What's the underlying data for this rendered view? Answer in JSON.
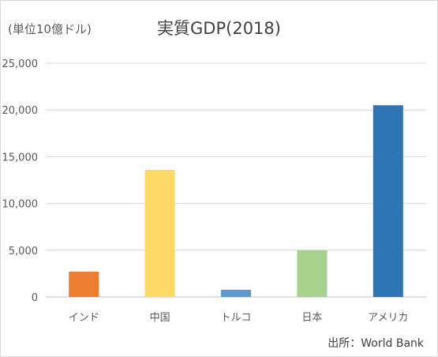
{
  "chart_data": {
    "type": "bar",
    "title": "実質GDP(2018)",
    "unit_label": "(単位10億ドル)",
    "source": "出所：World Bank",
    "categories": [
      "インド",
      "中国",
      "トルコ",
      "日本",
      "アメリカ"
    ],
    "values": [
      2700,
      13600,
      770,
      5000,
      20500
    ],
    "colors": [
      "#ed7d31",
      "#ffd966",
      "#5b9bd5",
      "#a9d18e",
      "#2e75b6"
    ],
    "ylim": [
      0,
      25000
    ],
    "yticks": [
      0,
      5000,
      10000,
      15000,
      20000,
      25000
    ],
    "ytick_labels": [
      "0",
      "5,000",
      "10,000",
      "15,000",
      "20,000",
      "25,000"
    ],
    "grid": true,
    "legend": "none"
  }
}
